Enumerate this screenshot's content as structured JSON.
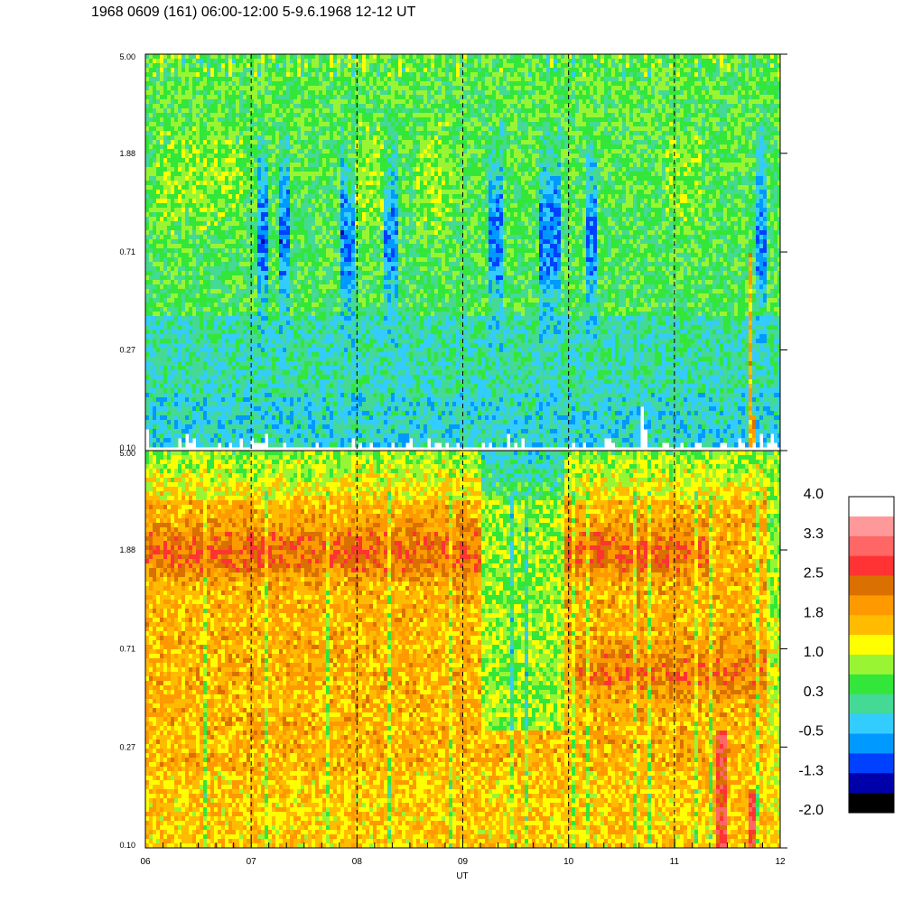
{
  "title": "1968 0609 (161) 06:00-12:00 5-9.6.1968  12-12 UT",
  "colors": {
    "scale": [
      "#000000",
      "#0000aa",
      "#0040ff",
      "#0099ff",
      "#33ccff",
      "#44d995",
      "#33e63a",
      "#99f533",
      "#ffff00",
      "#ffbb00",
      "#ff9900",
      "#d97000",
      "#ff3333",
      "#ff6666",
      "#ff9999",
      "#ffffff"
    ],
    "grid": "#000000"
  },
  "chart_data": [
    {
      "type": "heatmap",
      "panel": "upper",
      "title": "",
      "xlabel": "",
      "ylabel": "",
      "x_range": [
        "06",
        "12"
      ],
      "y_scale": "log",
      "y_ticks": [
        "5.00",
        "1.88",
        "0.71",
        "0.27",
        "0.10"
      ],
      "y_tick_values": [
        5.0,
        1.88,
        0.71,
        0.27,
        0.1
      ],
      "dominant_level": "0.3 to -0.5 (green / cyan) with dark-blue streaks near 0.7-2"
    },
    {
      "type": "heatmap",
      "panel": "lower",
      "title": "",
      "xlabel": "UT",
      "ylabel": "",
      "x_ticks": [
        "06",
        "07",
        "08",
        "09",
        "10",
        "11",
        "12"
      ],
      "x_tick_values": [
        6,
        7,
        8,
        9,
        10,
        11,
        12
      ],
      "y_scale": "log",
      "y_ticks": [
        "5.00",
        "1.88",
        "0.71",
        "0.27",
        "0.10"
      ],
      "y_tick_values": [
        5.0,
        1.88,
        0.71,
        0.27,
        0.1
      ],
      "dominant_level": "1.0 to 2.5 (yellow / orange), dark-orange band near 1.88"
    },
    {
      "type": "colorbar",
      "labels": [
        "4.0",
        "3.3",
        "2.5",
        "1.8",
        "1.0",
        "0.3",
        "-0.5",
        "-1.3",
        "-2.0"
      ],
      "range": [
        -2.0,
        4.0
      ]
    }
  ],
  "axes": {
    "xlabel": "UT",
    "x_ticks": [
      "06",
      "07",
      "08",
      "09",
      "10",
      "11",
      "12"
    ],
    "y_ticks": [
      "5.00",
      "1.88",
      "0.71",
      "0.27",
      "0.10"
    ]
  },
  "colorbar": {
    "labels": [
      "4.0",
      "3.3",
      "2.5",
      "1.8",
      "1.0",
      "0.3",
      "-0.5",
      "-1.3",
      "-2.0"
    ]
  }
}
